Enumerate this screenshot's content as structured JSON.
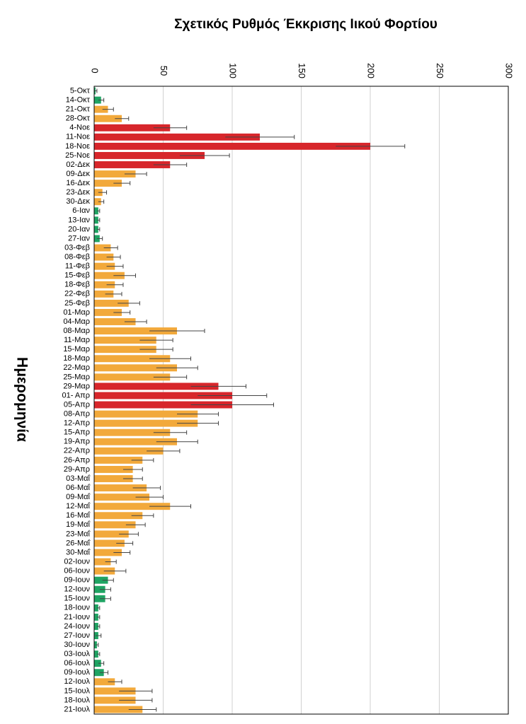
{
  "chart_data": {
    "type": "hbar",
    "title": "Σχετικός Ρυθμός Έκκρισης Ιικού Φορτίου",
    "x_label": "Ημερομηνία",
    "categories": [
      "5-Οκτ",
      "14-Οκτ",
      "21-Οκτ",
      "28-Οκτ",
      "4-Νοε",
      "11-Νοε",
      "18-Νοε",
      "25-Νοε",
      "02-Δεκ",
      "09-Δεκ",
      "16-Δεκ",
      "23-Δεκ",
      "30-Δεκ",
      "6-Ιαν",
      "13-Ιαν",
      "20-Ιαν",
      "27-Ιαν",
      "03-Φεβ",
      "08-Φεβ",
      "11-Φεβ",
      "15-Φεβ",
      "18-Φεβ",
      "22-Φεβ",
      "25-Φεβ",
      "01-Μαρ",
      "04-Μαρ",
      "08-Μαρ",
      "11-Μαρ",
      "15-Μαρ",
      "18-Μαρ",
      "22-Μαρ",
      "25-Μαρ",
      "29-Μαρ",
      "01- Απρ",
      "05-Απρ",
      "08-Απρ",
      "12-Απρ",
      "15-Απρ",
      "19-Απρ",
      "22-Απρ",
      "26-Απρ",
      "29-Απρ",
      "03-Μαΐ",
      "06-Μαΐ",
      "09-Μαΐ",
      "12-Μαΐ",
      "16-Μαΐ",
      "19-Μαΐ",
      "23-Μαΐ",
      "26-Μαΐ",
      "30-Μαΐ",
      "02-Ιουν",
      "06-Ιουν",
      "09-Ιουν",
      "12-Ιουν",
      "15-Ιουν",
      "18-Ιουν",
      "21-Ιουν",
      "24-Ιουν",
      "27-Ιουν",
      "30-Ιουν",
      "03-Ιουλ",
      "06-Ιουλ",
      "09-Ιουλ",
      "12-Ιουλ",
      "15-Ιουλ",
      "18-Ιουλ",
      "21-Ιουλ"
    ],
    "values": [
      1,
      5,
      10,
      20,
      55,
      120,
      200,
      80,
      55,
      30,
      20,
      6,
      5,
      3,
      3,
      3,
      4,
      12,
      14,
      15,
      22,
      15,
      14,
      25,
      20,
      30,
      60,
      45,
      45,
      55,
      60,
      55,
      90,
      100,
      100,
      75,
      75,
      55,
      60,
      50,
      35,
      28,
      28,
      38,
      40,
      55,
      35,
      30,
      25,
      22,
      20,
      12,
      15,
      10,
      8,
      8,
      3,
      3,
      3,
      3,
      2,
      3,
      5,
      7,
      15,
      30,
      30,
      35
    ],
    "errors": [
      1,
      2,
      4,
      5,
      12,
      25,
      25,
      18,
      12,
      8,
      6,
      3,
      2,
      1,
      1,
      1,
      2,
      5,
      5,
      6,
      8,
      6,
      6,
      8,
      6,
      8,
      20,
      12,
      12,
      15,
      15,
      12,
      20,
      25,
      30,
      15,
      15,
      12,
      15,
      12,
      8,
      7,
      7,
      10,
      10,
      15,
      8,
      7,
      7,
      6,
      6,
      4,
      8,
      4,
      4,
      4,
      1,
      1,
      1,
      2,
      1,
      1,
      2,
      3,
      5,
      12,
      12,
      10
    ],
    "colors": [
      "#1fa463",
      "#1fa463",
      "#f2a93b",
      "#f2a93b",
      "#d7262b",
      "#d7262b",
      "#d7262b",
      "#d7262b",
      "#d7262b",
      "#f2a93b",
      "#f2a93b",
      "#f2a93b",
      "#f2a93b",
      "#1fa463",
      "#1fa463",
      "#1fa463",
      "#1fa463",
      "#f2a93b",
      "#f2a93b",
      "#f2a93b",
      "#f2a93b",
      "#f2a93b",
      "#f2a93b",
      "#f2a93b",
      "#f2a93b",
      "#f2a93b",
      "#f2a93b",
      "#f2a93b",
      "#f2a93b",
      "#f2a93b",
      "#f2a93b",
      "#f2a93b",
      "#d7262b",
      "#d7262b",
      "#d7262b",
      "#f2a93b",
      "#f2a93b",
      "#f2a93b",
      "#f2a93b",
      "#f2a93b",
      "#f2a93b",
      "#f2a93b",
      "#f2a93b",
      "#f2a93b",
      "#f2a93b",
      "#f2a93b",
      "#f2a93b",
      "#f2a93b",
      "#f2a93b",
      "#f2a93b",
      "#f2a93b",
      "#f2a93b",
      "#f2a93b",
      "#1fa463",
      "#1fa463",
      "#1fa463",
      "#1fa463",
      "#1fa463",
      "#1fa463",
      "#1fa463",
      "#1fa463",
      "#1fa463",
      "#1fa463",
      "#1fa463",
      "#f2a93b",
      "#f2a93b",
      "#f2a93b",
      "#f2a93b"
    ],
    "xlim": [
      0,
      300
    ],
    "xticks": [
      0,
      50,
      100,
      150,
      200,
      250,
      300
    ],
    "grid": true
  }
}
